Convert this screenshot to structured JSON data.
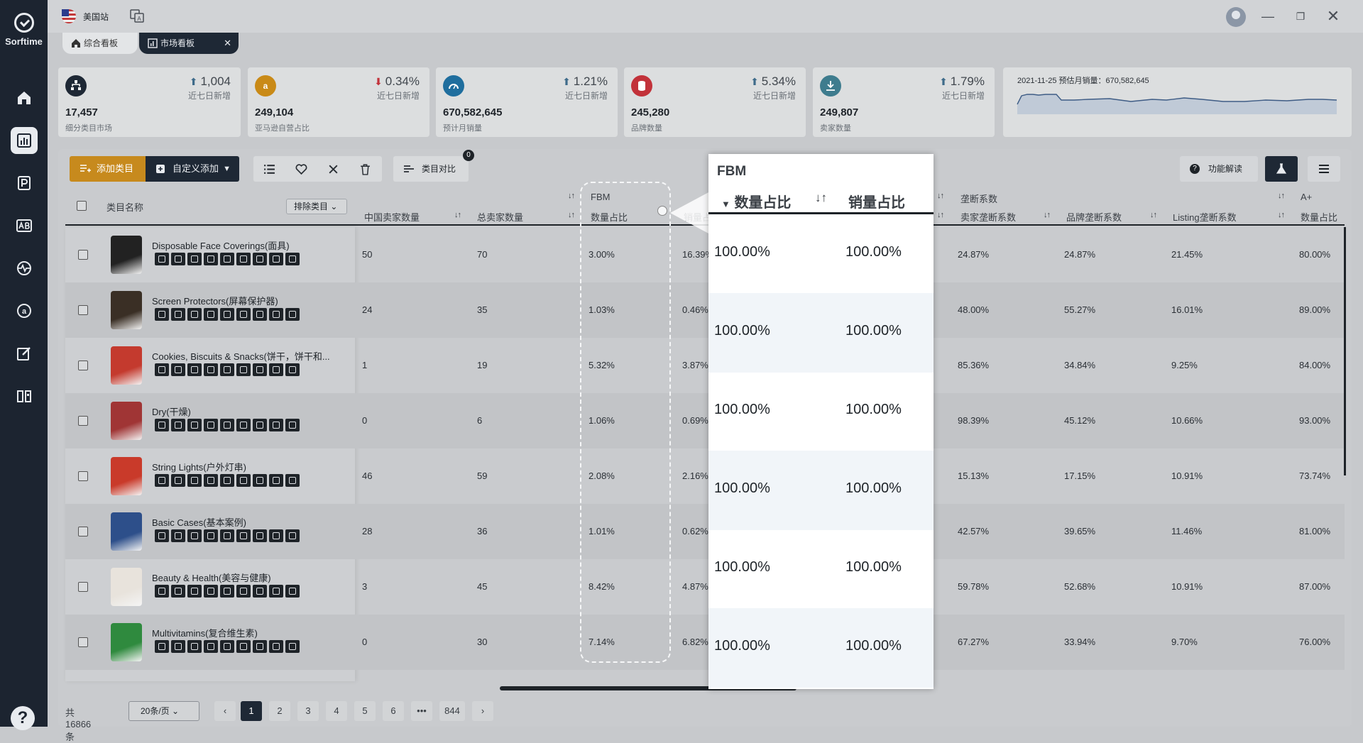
{
  "app": {
    "name": "Sorftime"
  },
  "titlebar": {
    "station": "美国站"
  },
  "tabs": [
    {
      "label": "综合看板"
    },
    {
      "label": "市场看板"
    }
  ],
  "stats": [
    {
      "value": "17,457",
      "label": "细分类目市场",
      "trend": "1,004",
      "direction": "up",
      "sub": "近七日新增",
      "color": "#1e2835",
      "icon": "sitemap-icon"
    },
    {
      "value": "249,104",
      "label": "亚马逊自营占比",
      "trend": "0.34%",
      "direction": "down",
      "sub": "近七日新增",
      "color": "#c98a17",
      "icon": "amazon-icon"
    },
    {
      "value": "670,582,645",
      "label": "预计月销量",
      "trend": "1.21%",
      "direction": "up",
      "sub": "近七日新增",
      "color": "#1f6e9e",
      "icon": "speedometer-icon"
    },
    {
      "value": "245,280",
      "label": "品牌数量",
      "trend": "5.34%",
      "direction": "up",
      "sub": "近七日新增",
      "color": "#c2323a",
      "icon": "database-icon"
    },
    {
      "value": "249,807",
      "label": "卖家数量",
      "trend": "1.79%",
      "direction": "up",
      "sub": "近七日新增",
      "color": "#3e7c8e",
      "icon": "seller-icon"
    }
  ],
  "sparkline": {
    "title": "2021-11-25 预估月销量：670,582,645"
  },
  "toolbar": {
    "add": "添加类目",
    "custom": "自定义添加",
    "compare": "类目对比",
    "compare_count": "0",
    "func": "功能解读"
  },
  "table": {
    "headers": {
      "name": "类目名称",
      "exclude": "排除类目",
      "cn_sellers": "中国卖家数量",
      "total_sellers": "总卖家数量",
      "fbm": "FBM",
      "fbm_qty": "数量占比",
      "fbm_sales": "销量占比",
      "monopoly": "垄断系数",
      "seller_mono": "卖家垄断系数",
      "brand_mono": "品牌垄断系数",
      "listing_mono": "Listing垄断系数",
      "aplus": "A+",
      "aplus_qty": "数量占比"
    },
    "rows": [
      {
        "name": "Disposable Face Coverings(面具)",
        "cn": "50",
        "total": "70",
        "fbm_qty": "3.00%",
        "fbm_sales": "16.39%",
        "seller": "24.87%",
        "brand": "24.87%",
        "listing": "21.45%",
        "aplus": "80.00%"
      },
      {
        "name": "Screen Protectors(屏幕保护器)",
        "cn": "24",
        "total": "35",
        "fbm_qty": "1.03%",
        "fbm_sales": "0.46%",
        "seller": "48.00%",
        "brand": "55.27%",
        "listing": "16.01%",
        "aplus": "89.00%"
      },
      {
        "name": "Cookies, Biscuits & Snacks(饼干，饼干和...",
        "cn": "1",
        "total": "19",
        "fbm_qty": "5.32%",
        "fbm_sales": "3.87%",
        "seller": "85.36%",
        "brand": "34.84%",
        "listing": "9.25%",
        "aplus": "84.00%"
      },
      {
        "name": "Dry(干燥)",
        "cn": "0",
        "total": "6",
        "fbm_qty": "1.06%",
        "fbm_sales": "0.69%",
        "seller": "98.39%",
        "brand": "45.12%",
        "listing": "10.66%",
        "aplus": "93.00%"
      },
      {
        "name": "String Lights(户外灯串)",
        "cn": "46",
        "total": "59",
        "fbm_qty": "2.08%",
        "fbm_sales": "2.16%",
        "seller": "15.13%",
        "brand": "17.15%",
        "listing": "10.91%",
        "aplus": "73.74%"
      },
      {
        "name": "Basic Cases(基本案例)",
        "cn": "28",
        "total": "36",
        "fbm_qty": "1.01%",
        "fbm_sales": "0.62%",
        "seller": "42.57%",
        "brand": "39.65%",
        "listing": "11.46%",
        "aplus": "81.00%"
      },
      {
        "name": "Beauty & Health(美容与健康)",
        "cn": "3",
        "total": "45",
        "fbm_qty": "8.42%",
        "fbm_sales": "4.87%",
        "seller": "59.78%",
        "brand": "52.68%",
        "listing": "10.91%",
        "aplus": "87.00%"
      },
      {
        "name": "Multivitamins(复合维生素)",
        "cn": "0",
        "total": "30",
        "fbm_qty": "7.14%",
        "fbm_sales": "6.82%",
        "seller": "67.27%",
        "brand": "33.94%",
        "listing": "9.70%",
        "aplus": "76.00%"
      }
    ]
  },
  "zoom": {
    "title": "FBM",
    "col1": "数量占比",
    "col2": "销量占比",
    "rows": [
      {
        "qty": "100.00%",
        "sales": "100.00%"
      },
      {
        "qty": "100.00%",
        "sales": "100.00%"
      },
      {
        "qty": "100.00%",
        "sales": "100.00%"
      },
      {
        "qty": "100.00%",
        "sales": "100.00%"
      },
      {
        "qty": "100.00%",
        "sales": "100.00%"
      },
      {
        "qty": "100.00%",
        "sales": "100.00%"
      }
    ]
  },
  "pagination": {
    "total": "共 16866 条",
    "page_size": "20条/页",
    "pages": [
      "1",
      "2",
      "3",
      "4",
      "5",
      "6",
      "•••",
      "844"
    ],
    "current": "1"
  }
}
